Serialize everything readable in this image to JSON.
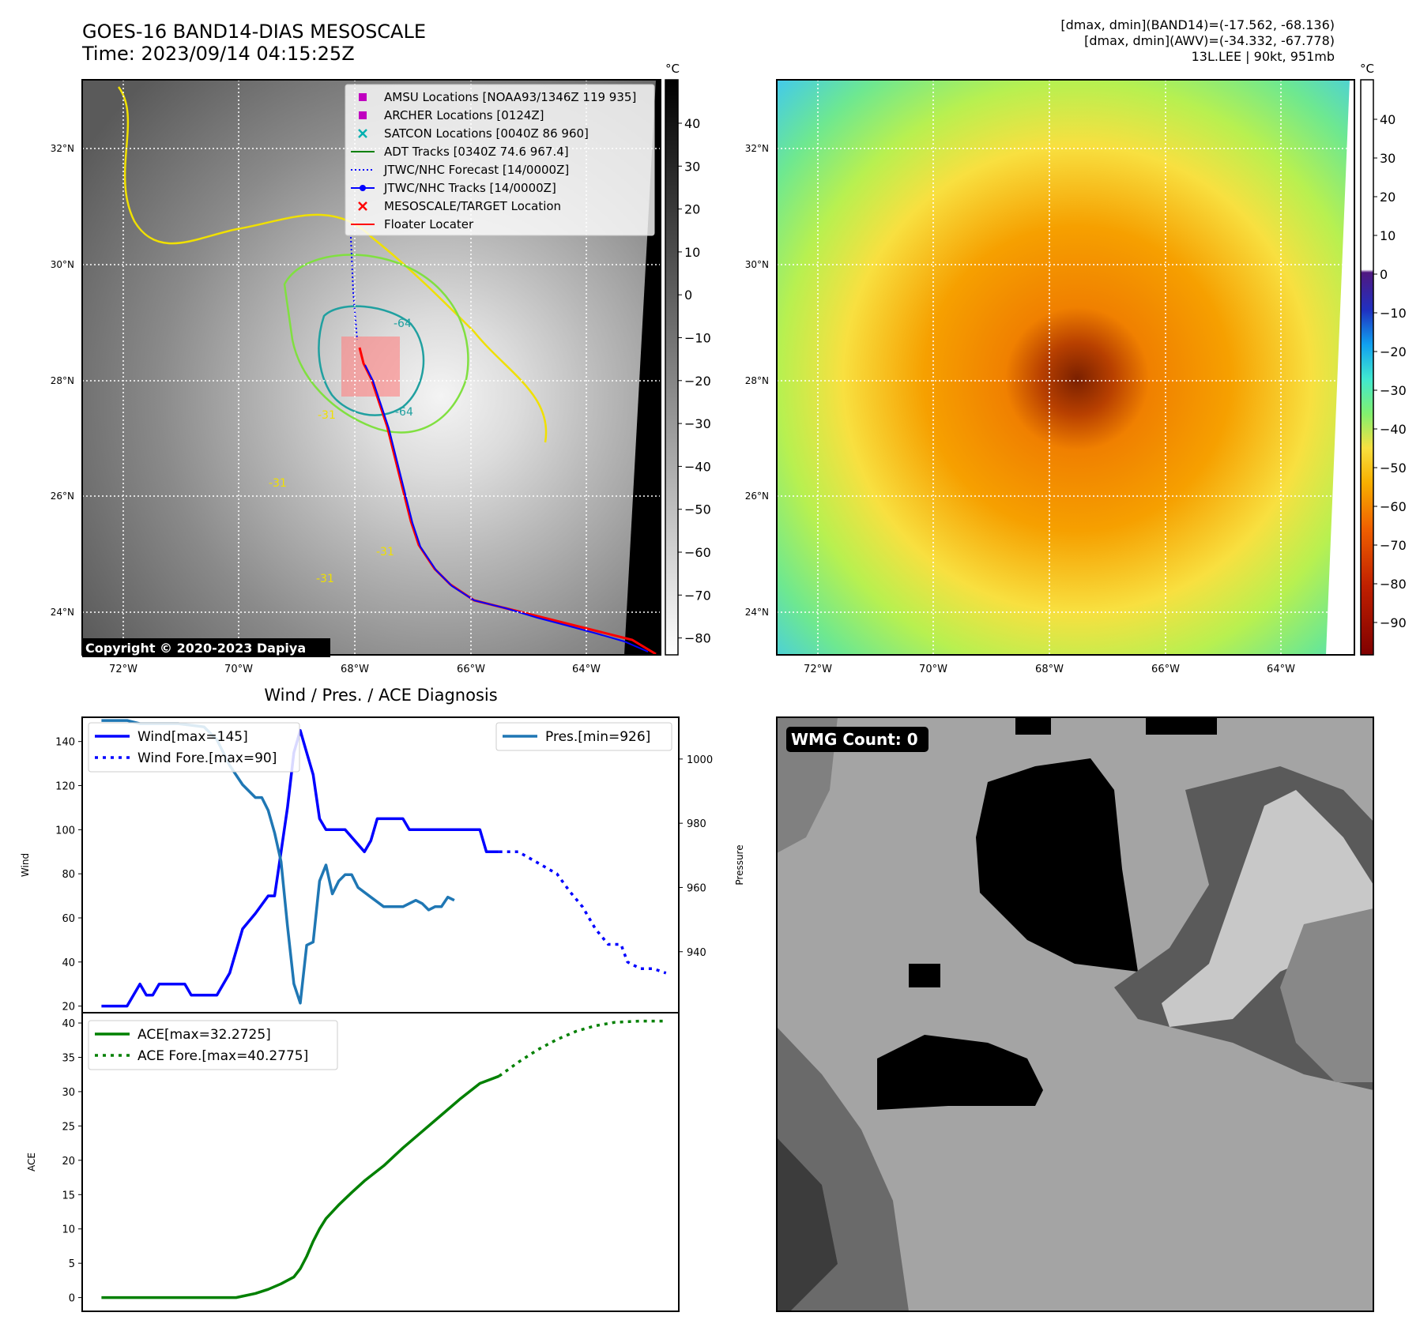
{
  "header": {
    "title_line1": "GOES-16 BAND14-DIAS MESOSCALE",
    "title_line2": "Time: 2023/09/14 04:15:25Z",
    "stats_line1": "[dmax, dmin](BAND14)=(-17.562, -68.136)",
    "stats_line2": "[dmax, dmin](AWV)=(-34.332, -67.778)",
    "stats_line3": "13L.LEE | 90kt, 951mb"
  },
  "maps": {
    "lon_ticks": [
      "72°W",
      "70°W",
      "68°W",
      "66°W",
      "64°W"
    ],
    "lat_ticks": [
      "32°N",
      "30°N",
      "28°N",
      "26°N",
      "24°N"
    ],
    "copyright": "Copyright © 2020-2023 Dapiya",
    "contour_labels": [
      "-64",
      "-64",
      "-31",
      "-31",
      "-31",
      "-31"
    ],
    "legend": [
      {
        "label": "AMSU Locations [NOAA93/1346Z 119 935]",
        "marker": "square",
        "color": "#c000c0"
      },
      {
        "label": "ARCHER Locations [0124Z]",
        "marker": "square",
        "color": "#c000c0"
      },
      {
        "label": "SATCON Locations [0040Z 86 960]",
        "marker": "x",
        "color": "#00b0b0"
      },
      {
        "label": "ADT Tracks [0340Z 74.6 967.4]",
        "marker": "line",
        "color": "#008000"
      },
      {
        "label": "JTWC/NHC Forecast [14/0000Z]",
        "marker": "dotted",
        "color": "#0000ff"
      },
      {
        "label": "JTWC/NHC Tracks [14/0000Z]",
        "marker": "line-dot",
        "color": "#0000ff"
      },
      {
        "label": "MESOSCALE/TARGET Location",
        "marker": "x",
        "color": "#ff0000"
      },
      {
        "label": "Floater Locater",
        "marker": "line",
        "color": "#ff0000"
      }
    ],
    "left_colorbar": {
      "unit": "°C",
      "ticks": [
        "40",
        "30",
        "20",
        "10",
        "0",
        "−10",
        "−20",
        "−30",
        "−40",
        "−50",
        "−60",
        "−70",
        "−80"
      ]
    },
    "right_colorbar": {
      "unit": "°C",
      "ticks": [
        "40",
        "30",
        "20",
        "10",
        "0",
        "−10",
        "−20",
        "−30",
        "−40",
        "−50",
        "−60",
        "−70",
        "−80",
        "−90"
      ]
    }
  },
  "wmg_label": "WMG Count: 0",
  "chart_data": [
    {
      "type": "line",
      "title": "Wind / Pres. / ACE Diagnosis",
      "ylabel": "Wind",
      "y2label": "Pressure",
      "ylim": [
        17,
        151
      ],
      "y2lim": [
        921,
        1013
      ],
      "yticks": [
        "20",
        "40",
        "60",
        "80",
        "100",
        "120",
        "140"
      ],
      "y2ticks": [
        "940",
        "960",
        "980",
        "1000"
      ],
      "legend": [
        {
          "label": "Wind[max=145]",
          "style": "solid",
          "color": "#0000ff"
        },
        {
          "label": "Wind Fore.[max=90]",
          "style": "dotted",
          "color": "#0000ff"
        },
        {
          "label": "Pres.[min=926]",
          "style": "solid",
          "color": "#1f77b4"
        }
      ],
      "series": [
        {
          "name": "Wind[max=145]",
          "axis": "left",
          "values": [
            [
              0,
              20
            ],
            [
              4,
              20
            ],
            [
              6,
              30
            ],
            [
              7,
              25
            ],
            [
              8,
              25
            ],
            [
              9,
              30
            ],
            [
              13,
              30
            ],
            [
              14,
              25
            ],
            [
              18,
              25
            ],
            [
              20,
              35
            ],
            [
              22,
              55
            ],
            [
              24,
              62
            ],
            [
              26,
              70
            ],
            [
              27,
              70
            ],
            [
              28,
              90
            ],
            [
              29,
              110
            ],
            [
              30,
              135
            ],
            [
              31,
              145
            ],
            [
              32,
              135
            ],
            [
              33,
              125
            ],
            [
              34,
              105
            ],
            [
              35,
              100
            ],
            [
              38,
              100
            ],
            [
              41,
              90
            ],
            [
              42,
              95
            ],
            [
              43,
              105
            ],
            [
              47,
              105
            ],
            [
              48,
              100
            ],
            [
              59,
              100
            ],
            [
              60,
              90
            ],
            [
              62,
              90
            ]
          ]
        },
        {
          "name": "Wind Fore.[max=90]",
          "axis": "left",
          "values": [
            [
              62,
              90
            ],
            [
              65,
              90
            ],
            [
              68,
              85
            ],
            [
              71,
              80
            ],
            [
              73,
              72
            ],
            [
              75,
              65
            ],
            [
              77,
              55
            ],
            [
              79,
              48
            ],
            [
              81,
              48
            ],
            [
              82,
              40
            ],
            [
              84,
              37
            ],
            [
              86,
              37
            ],
            [
              88,
              35
            ]
          ]
        },
        {
          "name": "Pres.[min=926]",
          "axis": "right",
          "values": [
            [
              0,
              1012
            ],
            [
              4,
              1012
            ],
            [
              6,
              1011
            ],
            [
              8,
              1011
            ],
            [
              12,
              1011
            ],
            [
              16,
              1010
            ],
            [
              18,
              1006
            ],
            [
              20,
              998
            ],
            [
              22,
              992
            ],
            [
              24,
              988
            ],
            [
              25,
              988
            ],
            [
              26,
              984
            ],
            [
              27,
              977
            ],
            [
              28,
              968
            ],
            [
              29,
              948
            ],
            [
              30,
              930
            ],
            [
              31,
              924
            ],
            [
              32,
              942
            ],
            [
              33,
              943
            ],
            [
              34,
              962
            ],
            [
              35,
              967
            ],
            [
              36,
              958
            ],
            [
              37,
              962
            ],
            [
              38,
              964
            ],
            [
              39,
              964
            ],
            [
              40,
              960
            ],
            [
              42,
              957
            ],
            [
              44,
              954
            ],
            [
              47,
              954
            ],
            [
              49,
              956
            ],
            [
              50,
              955
            ],
            [
              51,
              953
            ],
            [
              52,
              954
            ],
            [
              53,
              954
            ],
            [
              54,
              957
            ],
            [
              55,
              956
            ]
          ]
        }
      ]
    },
    {
      "type": "line",
      "ylabel": "ACE",
      "ylim": [
        -2,
        41.5
      ],
      "yticks": [
        "0",
        "5",
        "10",
        "15",
        "20",
        "25",
        "30",
        "35",
        "40"
      ],
      "legend": [
        {
          "label": "ACE[max=32.2725]",
          "style": "solid",
          "color": "#008000"
        },
        {
          "label": "ACE Fore.[max=40.2775]",
          "style": "dotted",
          "color": "#008000"
        }
      ],
      "series": [
        {
          "name": "ACE[max=32.2725]",
          "values": [
            [
              0,
              0
            ],
            [
              21,
              0
            ],
            [
              22,
              0.2
            ],
            [
              24,
              0.6
            ],
            [
              26,
              1.2
            ],
            [
              28,
              2.0
            ],
            [
              30,
              3.0
            ],
            [
              31,
              4.2
            ],
            [
              32,
              6.0
            ],
            [
              33,
              8.2
            ],
            [
              34,
              10.0
            ],
            [
              35,
              11.5
            ],
            [
              37,
              13.5
            ],
            [
              39,
              15.3
            ],
            [
              41,
              17.0
            ],
            [
              44,
              19.2
            ],
            [
              47,
              21.8
            ],
            [
              50,
              24.2
            ],
            [
              53,
              26.6
            ],
            [
              56,
              29.0
            ],
            [
              59,
              31.2
            ],
            [
              62,
              32.27
            ]
          ]
        },
        {
          "name": "ACE Fore.[max=40.2775]",
          "values": [
            [
              62,
              32.27
            ],
            [
              65,
              34.3
            ],
            [
              68,
              36.1
            ],
            [
              71,
              37.6
            ],
            [
              74,
              38.8
            ],
            [
              77,
              39.6
            ],
            [
              80,
              40.1
            ],
            [
              84,
              40.28
            ],
            [
              88,
              40.28
            ]
          ]
        }
      ]
    }
  ]
}
